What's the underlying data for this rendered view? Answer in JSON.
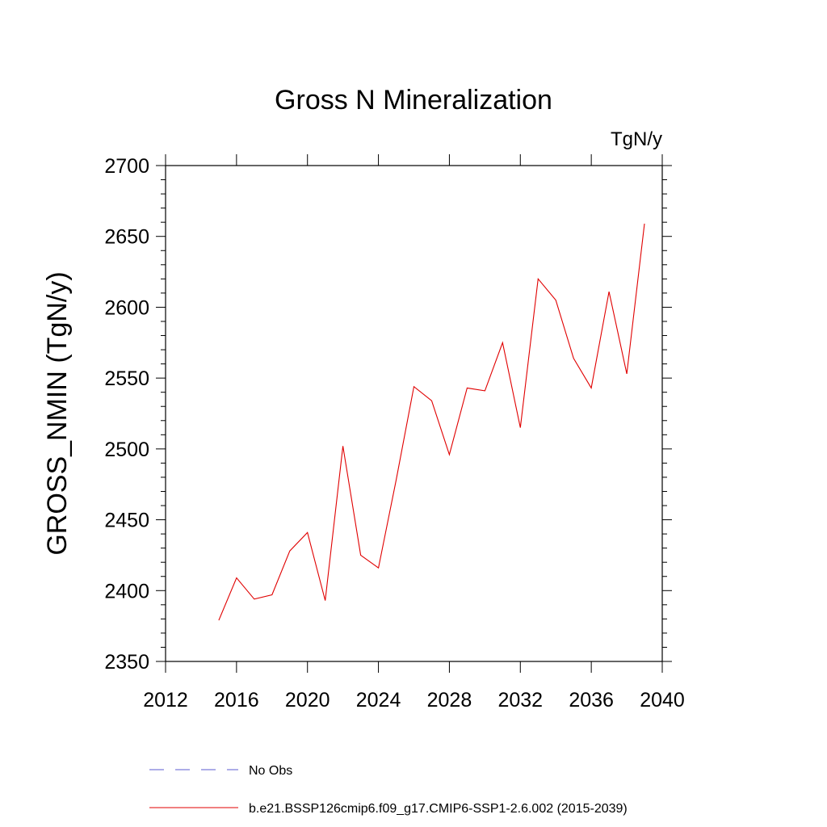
{
  "chart_data": {
    "type": "line",
    "title": "Gross N Mineralization",
    "units": "TgN/y",
    "ylabel": "GROSS_NMIN  (TgN/y)",
    "xlabel": "",
    "xlim": [
      2012,
      2040
    ],
    "ylim": [
      2350,
      2700
    ],
    "xticks": [
      2012,
      2016,
      2020,
      2024,
      2028,
      2032,
      2036,
      2040
    ],
    "yticks": [
      2350,
      2400,
      2450,
      2500,
      2550,
      2600,
      2650,
      2700
    ],
    "grid": false,
    "legend_position": "bottom",
    "series": [
      {
        "name": "No Obs",
        "color": "#5b5bd0",
        "dash": "dashed",
        "x": [],
        "y": []
      },
      {
        "name": "b.e21.BSSP126cmip6.f09_g17.CMIP6-SSP1-2.6.002 (2015-2039)",
        "color": "#e00000",
        "dash": "solid",
        "x": [
          2015,
          2016,
          2017,
          2018,
          2019,
          2020,
          2021,
          2022,
          2023,
          2024,
          2025,
          2026,
          2027,
          2028,
          2029,
          2030,
          2031,
          2032,
          2033,
          2034,
          2035,
          2036,
          2037,
          2038,
          2039
        ],
        "y": [
          2379,
          2409,
          2394,
          2397,
          2428,
          2441,
          2393,
          2502,
          2425,
          2416,
          2478,
          2544,
          2534,
          2496,
          2543,
          2541,
          2575,
          2515,
          2620,
          2605,
          2564,
          2543,
          2611,
          2553,
          2659
        ]
      }
    ]
  }
}
